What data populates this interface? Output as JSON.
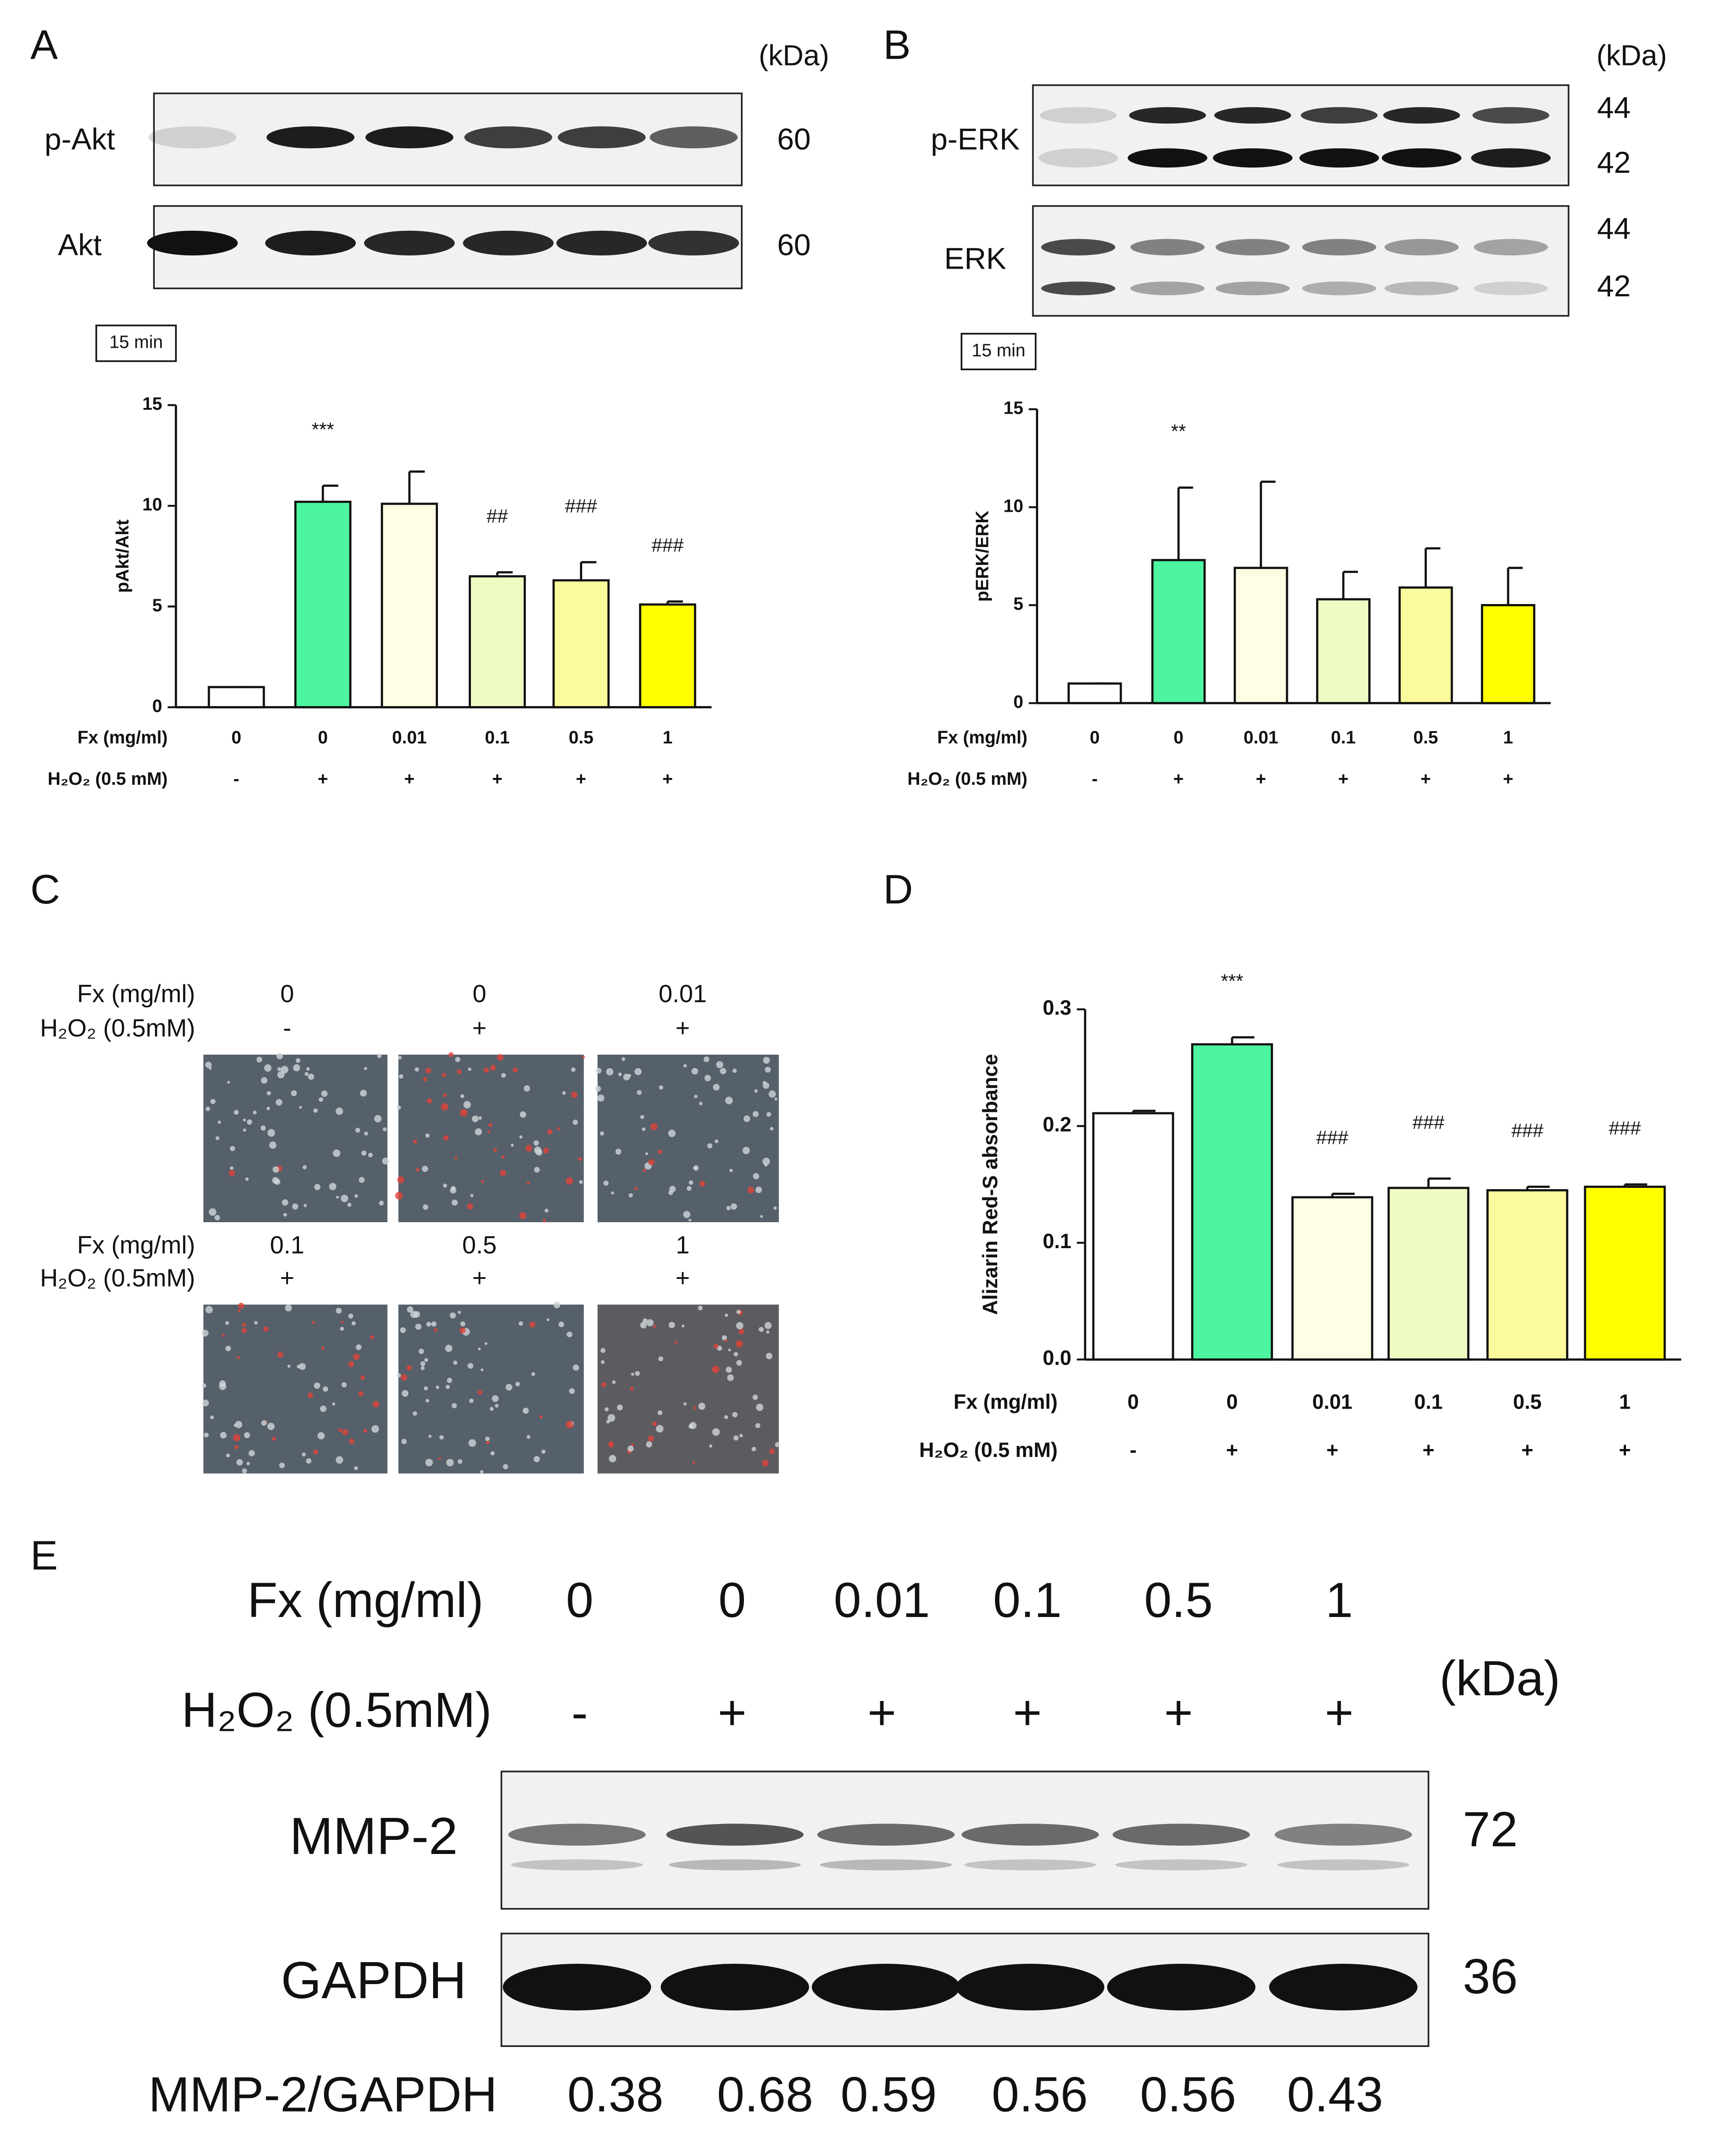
{
  "panel_labels": [
    "A",
    "B",
    "C",
    "D",
    "E"
  ],
  "blot_A": {
    "kda": "(kDa)",
    "time": "15 min",
    "rows": [
      {
        "name": "p-Akt",
        "sizes": [
          60
        ]
      },
      {
        "name": "Akt",
        "sizes": [
          60
        ]
      }
    ]
  },
  "blot_B": {
    "kda": "(kDa)",
    "time": "15 min",
    "rows": [
      {
        "name": "p-ERK",
        "sizes": [
          44,
          42
        ]
      },
      {
        "name": "ERK",
        "sizes": [
          44,
          42
        ]
      }
    ]
  },
  "panel_C": {
    "row_labels": [
      "Fx (mg/ml)",
      "H₂O₂ (0.5mM)"
    ],
    "fx": [
      "0",
      "0",
      "0.01",
      "0.1",
      "0.5",
      "1"
    ],
    "h2o2": [
      "-",
      "+",
      "+",
      "+",
      "+",
      "+"
    ]
  },
  "panel_E": {
    "row_labels": [
      "Fx (mg/ml)",
      "H₂O₂ (0.5mM)"
    ],
    "fx": [
      "0",
      "0",
      "0.01",
      "0.1",
      "0.5",
      "1"
    ],
    "h2o2": [
      "-",
      "+",
      "+",
      "+",
      "+",
      "+"
    ],
    "kda": "(kDa)",
    "rows": [
      {
        "name": "MMP-2",
        "size": 72
      },
      {
        "name": "GAPDH",
        "size": 36
      }
    ],
    "ratio_label": "MMP-2/GAPDH",
    "ratios": [
      0.38,
      0.68,
      0.59,
      0.56,
      0.56,
      0.43
    ]
  },
  "chart_data": [
    {
      "type": "bar",
      "y_label": "pAkt/Akt",
      "row_labels": [
        "Fx (mg/ml)",
        "H₂O₂ (0.5 mM)"
      ],
      "categories": [
        "0",
        "0",
        "0.01",
        "0.1",
        "0.5",
        "1"
      ],
      "h2o2": [
        "-",
        "+",
        "+",
        "+",
        "+",
        "+"
      ],
      "values": [
        1,
        10.2,
        10.1,
        6.5,
        6.3,
        5.1
      ],
      "errors": [
        0,
        0.8,
        1.6,
        0.2,
        0.9,
        0.15
      ],
      "colors": [
        "#ffffff",
        "#4df5a0",
        "#fffde3",
        "#eefcc4",
        "#fbfa9c",
        "#ffff00"
      ],
      "annotations": [
        {
          "index": 1,
          "text": "***"
        },
        {
          "index": 3,
          "text": "##"
        },
        {
          "index": 4,
          "text": "###"
        },
        {
          "index": 5,
          "text": "###"
        }
      ],
      "ylim": [
        0,
        15
      ],
      "yticks": [
        0,
        5,
        10,
        15
      ]
    },
    {
      "type": "bar",
      "y_label": "pERK/ERK",
      "row_labels": [
        "Fx (mg/ml)",
        "H₂O₂ (0.5 mM)"
      ],
      "categories": [
        "0",
        "0",
        "0.01",
        "0.1",
        "0.5",
        "1"
      ],
      "h2o2": [
        "-",
        "+",
        "+",
        "+",
        "+",
        "+"
      ],
      "values": [
        1,
        7.3,
        6.9,
        5.3,
        5.9,
        5.0
      ],
      "errors": [
        0,
        3.7,
        4.4,
        1.4,
        2.0,
        1.9
      ],
      "colors": [
        "#ffffff",
        "#4df5a0",
        "#fffde3",
        "#eefcc4",
        "#fbfa9c",
        "#ffff00"
      ],
      "annotations": [
        {
          "index": 1,
          "text": "**"
        }
      ],
      "ylim": [
        0,
        15
      ],
      "yticks": [
        0,
        5,
        10,
        15
      ]
    },
    {
      "type": "bar",
      "y_label": "Alizarin Red-S absorbance",
      "row_labels": [
        "Fx (mg/ml)",
        "H₂O₂ (0.5 mM)"
      ],
      "categories": [
        "0",
        "0",
        "0.01",
        "0.1",
        "0.5",
        "1"
      ],
      "h2o2": [
        "-",
        "+",
        "+",
        "+",
        "+",
        "+"
      ],
      "values": [
        0.211,
        0.27,
        0.139,
        0.147,
        0.145,
        0.148
      ],
      "errors": [
        0.002,
        0.006,
        0.003,
        0.008,
        0.003,
        0.002
      ],
      "colors": [
        "#ffffff",
        "#4df5a0",
        "#fffde3",
        "#eefcc4",
        "#fbfa9c",
        "#ffff00"
      ],
      "annotations": [
        {
          "index": 1,
          "text": "***"
        },
        {
          "index": 2,
          "text": "###"
        },
        {
          "index": 3,
          "text": "###"
        },
        {
          "index": 4,
          "text": "###"
        },
        {
          "index": 5,
          "text": "###"
        }
      ],
      "ylim": [
        0,
        0.3
      ],
      "yticks": [
        {
          "value": 0,
          "label": "0.0"
        },
        0.1,
        0.2,
        0.3
      ]
    }
  ]
}
